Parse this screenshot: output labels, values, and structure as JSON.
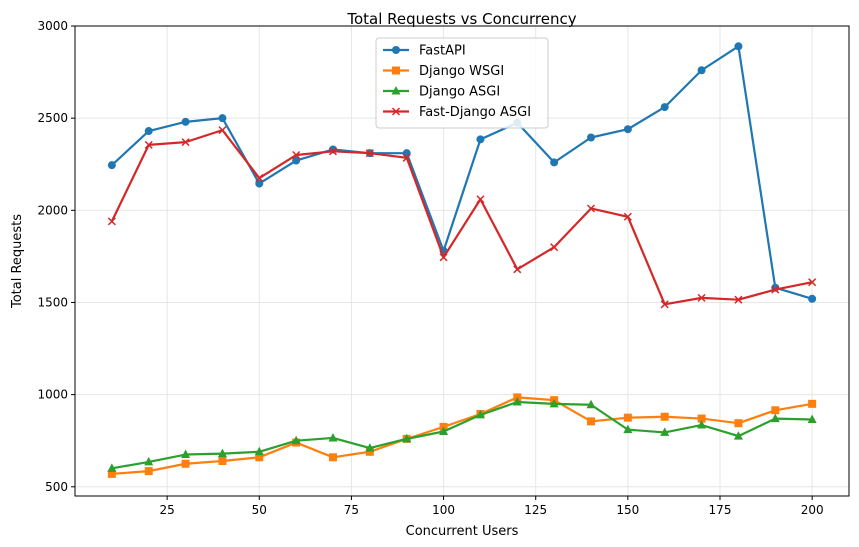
{
  "chart_data": {
    "type": "line",
    "title": "Total Requests vs Concurrency",
    "xlabel": "Concurrent Users",
    "ylabel": "Total Requests",
    "xlim": [
      0,
      210
    ],
    "ylim": [
      450,
      3000
    ],
    "xticks": [
      25,
      50,
      75,
      100,
      125,
      150,
      175,
      200
    ],
    "yticks": [
      500,
      1000,
      1500,
      2000,
      2500,
      3000
    ],
    "grid": true,
    "legend_position": "top-center",
    "x": [
      10,
      20,
      30,
      40,
      50,
      60,
      70,
      80,
      90,
      100,
      110,
      120,
      130,
      140,
      150,
      160,
      170,
      180,
      190,
      200
    ],
    "series": [
      {
        "name": "FastAPI",
        "color": "#1f77b4",
        "marker": "circle",
        "values": [
          2245,
          2430,
          2480,
          2500,
          2145,
          2270,
          2330,
          2310,
          2310,
          1780,
          2385,
          2475,
          2260,
          2395,
          2440,
          2560,
          2760,
          2890,
          1580,
          1520
        ]
      },
      {
        "name": "Django WSGI",
        "color": "#ff7f0e",
        "marker": "square",
        "values": [
          570,
          585,
          625,
          640,
          660,
          740,
          660,
          690,
          760,
          825,
          895,
          985,
          970,
          855,
          875,
          880,
          870,
          845,
          915,
          950
        ]
      },
      {
        "name": "Django ASGI",
        "color": "#2ca02c",
        "marker": "triangle",
        "values": [
          600,
          635,
          675,
          680,
          690,
          750,
          765,
          710,
          760,
          800,
          890,
          960,
          950,
          945,
          810,
          795,
          835,
          775,
          870,
          865
        ]
      },
      {
        "name": "Fast-Django ASGI",
        "color": "#d62728",
        "marker": "x",
        "values": [
          1940,
          2355,
          2370,
          2435,
          2175,
          2300,
          2320,
          2310,
          2285,
          1745,
          2060,
          1680,
          1800,
          2010,
          1965,
          1490,
          1525,
          1515,
          1570,
          1610
        ]
      }
    ]
  }
}
